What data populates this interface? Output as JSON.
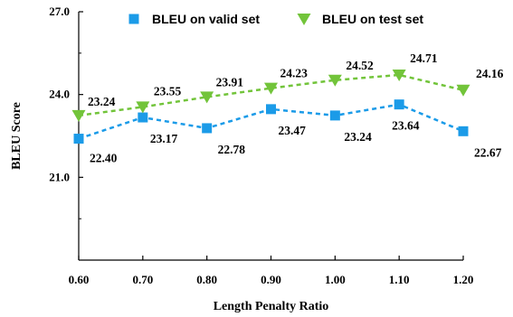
{
  "chart_data": {
    "type": "line",
    "title": "",
    "xlabel": "Length Penalty Ratio",
    "ylabel": "BLEU Score",
    "x": [
      0.6,
      0.7,
      0.8,
      0.9,
      1.0,
      1.1,
      1.2
    ],
    "x_tick_labels": [
      "0.60",
      "0.70",
      "0.80",
      "0.90",
      "1.00",
      "1.10",
      "1.20"
    ],
    "y_tick_labels": [
      "21.0",
      "24.0",
      "27.0"
    ],
    "y_ticks": [
      21.0,
      24.0,
      27.0
    ],
    "xlim": [
      0.6,
      1.2
    ],
    "ylim": [
      18.0,
      27.0
    ],
    "grid": false,
    "legend_position": "top",
    "series": [
      {
        "name": "BLEU on valid set",
        "values": [
          22.4,
          23.17,
          22.78,
          23.47,
          23.24,
          23.64,
          22.67
        ],
        "labels": [
          "22.40",
          "23.17",
          "22.78",
          "23.47",
          "23.24",
          "23.64",
          "22.67"
        ],
        "color": "#1B9BE8",
        "marker": "square",
        "line_style": "dashed"
      },
      {
        "name": "BLEU on test set",
        "values": [
          23.24,
          23.55,
          23.91,
          24.23,
          24.52,
          24.71,
          24.16
        ],
        "labels": [
          "23.24",
          "23.55",
          "23.91",
          "24.23",
          "24.52",
          "24.71",
          "24.16"
        ],
        "color": "#72C43A",
        "marker": "triangle-down",
        "line_style": "dashed"
      }
    ]
  }
}
